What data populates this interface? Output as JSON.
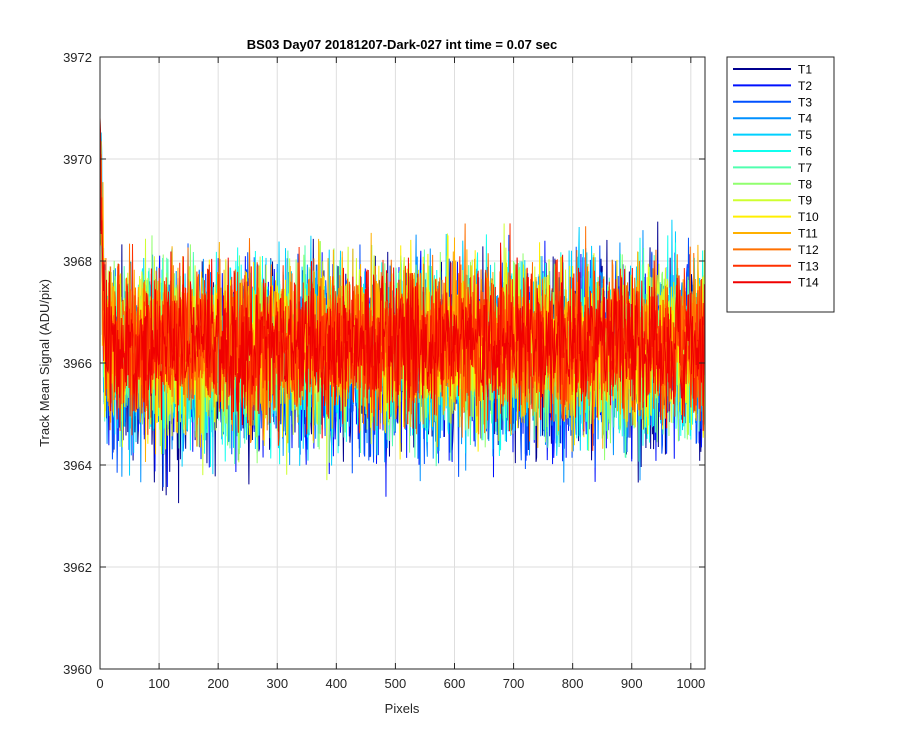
{
  "chart_data": {
    "type": "line",
    "title": "BS03 Day07 20181207-Dark-027 int time = 0.07 sec",
    "xlabel": "Pixels",
    "ylabel": "Track Mean Signal (ADU/pix)",
    "xlim": [
      0,
      1024
    ],
    "ylim": [
      3960,
      3972
    ],
    "xticks": [
      0,
      100,
      200,
      300,
      400,
      500,
      600,
      700,
      800,
      900,
      1000
    ],
    "yticks": [
      3960,
      3962,
      3964,
      3966,
      3968,
      3970,
      3972
    ],
    "grid": true,
    "legend_position": "outside-right",
    "series": [
      {
        "name": "T1",
        "color": "#00008F",
        "center": 3966.0,
        "spread": 0.95,
        "seed": 11
      },
      {
        "name": "T2",
        "color": "#0010FF",
        "center": 3966.0,
        "spread": 0.9,
        "seed": 23
      },
      {
        "name": "T3",
        "color": "#0050FF",
        "center": 3966.1,
        "spread": 0.9,
        "seed": 37
      },
      {
        "name": "T4",
        "color": "#0090FF",
        "center": 3966.1,
        "spread": 0.9,
        "seed": 41
      },
      {
        "name": "T5",
        "color": "#00D0FF",
        "center": 3966.2,
        "spread": 0.88,
        "seed": 53
      },
      {
        "name": "T6",
        "color": "#10FFEF",
        "center": 3966.2,
        "spread": 0.88,
        "seed": 67
      },
      {
        "name": "T7",
        "color": "#50FFAF",
        "center": 3966.2,
        "spread": 0.85,
        "seed": 71
      },
      {
        "name": "T8",
        "color": "#90FF6F",
        "center": 3966.3,
        "spread": 0.85,
        "seed": 83
      },
      {
        "name": "T9",
        "color": "#CFFF30",
        "center": 3966.3,
        "spread": 0.82,
        "seed": 97
      },
      {
        "name": "T10",
        "color": "#FFEF00",
        "center": 3966.3,
        "spread": 0.8,
        "seed": 101
      },
      {
        "name": "T11",
        "color": "#FFB000",
        "center": 3966.4,
        "spread": 0.8,
        "seed": 113
      },
      {
        "name": "T12",
        "color": "#FF7000",
        "center": 3966.4,
        "spread": 0.78,
        "seed": 127
      },
      {
        "name": "T13",
        "color": "#FF3000",
        "center": 3966.4,
        "spread": 0.75,
        "seed": 131
      },
      {
        "name": "T14",
        "color": "#F00000",
        "center": 3966.4,
        "spread": 0.72,
        "seed": 149
      }
    ]
  }
}
